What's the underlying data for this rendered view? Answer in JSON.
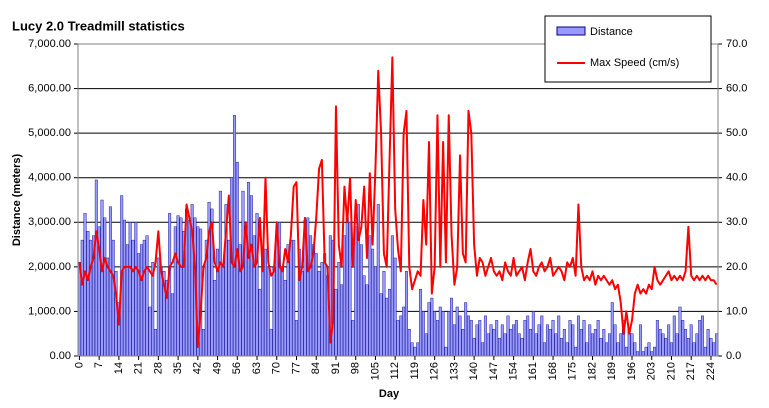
{
  "chart_data": {
    "type": "bar_line",
    "title": "Lucy 2.0 Treadmill statistics",
    "xlabel": "Day",
    "ylabel": "Distance (meters)",
    "categories": [
      0,
      null,
      null,
      null,
      null,
      null,
      null,
      7,
      null,
      null,
      null,
      null,
      null,
      null,
      14,
      null,
      null,
      null,
      null,
      null,
      null,
      21,
      null,
      null,
      null,
      null,
      null,
      null,
      28,
      null,
      null,
      null,
      null,
      null,
      null,
      35,
      null,
      null,
      null,
      null,
      null,
      null,
      42,
      null,
      null,
      null,
      null,
      null,
      null,
      49,
      null,
      null,
      null,
      null,
      null,
      null,
      56,
      null,
      null,
      null,
      null,
      null,
      null,
      63,
      null,
      null,
      null,
      null,
      null,
      null,
      70,
      null,
      null,
      null,
      null,
      null,
      null,
      77,
      null,
      null,
      null,
      null,
      null,
      null,
      84,
      null,
      null,
      null,
      null,
      null,
      null,
      91,
      null,
      null,
      null,
      null,
      null,
      null,
      98,
      null,
      null,
      null,
      null,
      null,
      null,
      105,
      null,
      null,
      null,
      null,
      null,
      null,
      112,
      null,
      null,
      null,
      null,
      null,
      null,
      119,
      null,
      null,
      null,
      null,
      null,
      null,
      126,
      null,
      null,
      null,
      null,
      null,
      null,
      133,
      null,
      null,
      null,
      null,
      null,
      null,
      140,
      null,
      null,
      null,
      null,
      null,
      null,
      147,
      null,
      null,
      null,
      null,
      null,
      null,
      154,
      null,
      null,
      null,
      null,
      null,
      null,
      161,
      null,
      null,
      null,
      null,
      null,
      null,
      168,
      null,
      null,
      null,
      null,
      null,
      null,
      175,
      null,
      null,
      null,
      null,
      null,
      null,
      182,
      null,
      null,
      null,
      null,
      null,
      null,
      189,
      null,
      null,
      null,
      null,
      null,
      null,
      196,
      null,
      null,
      null,
      null,
      null,
      null,
      203,
      null,
      null,
      null,
      null,
      null,
      null,
      210,
      null,
      null,
      null,
      null,
      null,
      null,
      217,
      null,
      null,
      null,
      null,
      null,
      null,
      224,
      null,
      null
    ],
    "series": [
      {
        "name": "Distance",
        "type": "bar",
        "color": "#9999ff",
        "edge": "#000080",
        "values": [
          2100,
          2600,
          3200,
          2800,
          2600,
          2700,
          3950,
          2900,
          3500,
          3100,
          2200,
          3350,
          2600,
          1900,
          1200,
          3600,
          3050,
          2500,
          3000,
          2600,
          3000,
          2300,
          2500,
          2600,
          2700,
          1100,
          2100,
          600,
          2200,
          2000,
          1900,
          1700,
          3200,
          1400,
          2900,
          3150,
          3100,
          2800,
          3300,
          3050,
          3400,
          3100,
          2900,
          2850,
          600,
          2600,
          3450,
          3300,
          1700,
          2400,
          3700,
          2000,
          3400,
          2600,
          4000,
          5400,
          4350,
          2500,
          3700,
          2900,
          3900,
          3600,
          2700,
          3200,
          1500,
          2200,
          2400,
          2000,
          600,
          2000,
          2600,
          3000,
          2000,
          1700,
          2500,
          2600,
          2600,
          800,
          2400,
          1900,
          3050,
          3100,
          2700,
          2500,
          2300,
          1900,
          2100,
          2300,
          1800,
          2700,
          2600,
          1500,
          2100,
          1600,
          2700,
          3100,
          3000,
          800,
          2900,
          3400,
          2500,
          1800,
          1600,
          2700,
          2400,
          2000,
          3400,
          1400,
          1900,
          1300,
          1500,
          2700,
          2200,
          800,
          900,
          1100,
          1900,
          600,
          300,
          200,
          300,
          1500,
          1000,
          500,
          1200,
          1300,
          1000,
          800,
          1100,
          1000,
          200,
          1000,
          1300,
          700,
          1100,
          900,
          600,
          1200,
          900,
          800,
          400,
          700,
          800,
          300,
          900,
          500,
          700,
          600,
          800,
          400,
          700,
          500,
          900,
          600,
          700,
          800,
          500,
          400,
          800,
          900,
          600,
          1000,
          500,
          700,
          900,
          300,
          700,
          600,
          800,
          500,
          900,
          400,
          600,
          300,
          800,
          700,
          200,
          900,
          600,
          800,
          300,
          700,
          500,
          600,
          800,
          400,
          600,
          300,
          500,
          1200,
          700,
          300,
          500,
          800,
          200,
          600,
          500,
          300,
          100,
          700,
          100,
          200,
          300,
          100,
          200,
          800,
          600,
          500,
          400,
          700,
          300,
          900,
          500,
          1100,
          800,
          600,
          400,
          700,
          300,
          500,
          800,
          900,
          200,
          600,
          400,
          300,
          500
        ]
      },
      {
        "name": "Max Speed (cm/s)",
        "type": "line",
        "axis": "y2",
        "color": "#ff0000",
        "values": [
          21,
          16,
          19,
          17,
          20,
          22,
          28,
          24,
          19,
          22,
          20,
          19,
          18,
          14,
          7,
          19,
          20,
          20,
          20,
          19,
          20,
          19,
          17,
          19,
          20,
          19,
          18,
          21,
          28,
          19,
          16,
          13,
          20,
          21,
          23,
          21,
          20,
          20,
          34,
          31,
          28,
          20,
          2,
          10,
          20,
          22,
          28,
          30,
          21,
          19,
          21,
          20,
          28,
          36,
          21,
          20,
          24,
          19,
          20,
          30,
          22,
          25,
          20,
          21,
          31,
          19,
          40,
          21,
          18,
          19,
          30,
          20,
          19,
          24,
          21,
          27,
          38,
          39,
          17,
          20,
          31,
          19,
          20,
          23,
          31,
          42,
          44,
          21,
          20,
          3,
          8,
          56,
          25,
          20,
          38,
          30,
          40,
          20,
          35,
          26,
          29,
          38,
          22,
          41,
          25,
          42,
          64,
          50,
          23,
          20,
          44,
          67,
          33,
          24,
          19,
          50,
          55,
          20,
          15,
          17,
          19,
          18,
          35,
          25,
          48,
          14,
          20,
          54,
          20,
          48,
          21,
          54,
          27,
          16,
          20,
          45,
          23,
          21,
          55,
          50,
          25,
          18,
          22,
          21,
          18,
          20,
          22,
          19,
          18,
          19,
          17,
          21,
          19,
          18,
          22,
          18,
          19,
          20,
          17,
          21,
          24,
          19,
          18,
          20,
          21,
          19,
          20,
          22,
          18,
          19,
          20,
          19,
          17,
          21,
          20,
          22,
          18,
          34,
          20,
          17,
          18,
          17,
          19,
          16,
          18,
          17,
          18,
          17,
          16,
          17,
          15,
          16,
          12,
          5,
          10,
          5,
          8,
          14,
          16,
          14,
          15,
          14,
          16,
          15,
          20,
          17,
          16,
          17,
          18,
          19,
          17,
          18,
          17,
          18,
          17,
          19,
          29,
          18,
          17,
          18,
          17,
          18,
          17,
          18,
          17,
          17,
          16
        ]
      }
    ],
    "ylim": [
      0,
      7000
    ],
    "yticks": [
      {
        "value": 0,
        "label": "0.00"
      },
      {
        "value": 1000,
        "label": "1,000.00"
      },
      {
        "value": 2000,
        "label": "2,000.00"
      },
      {
        "value": 3000,
        "label": "3,000.00"
      },
      {
        "value": 4000,
        "label": "4,000.00"
      },
      {
        "value": 5000,
        "label": "5,000.00"
      },
      {
        "value": 6000,
        "label": "6,000.00"
      },
      {
        "value": 7000,
        "label": "7,000.00"
      }
    ],
    "y2lim": [
      0,
      70
    ],
    "y2ticks": [
      {
        "value": 0,
        "label": "0.0"
      },
      {
        "value": 10,
        "label": "10.0"
      },
      {
        "value": 20,
        "label": "20.0"
      },
      {
        "value": 30,
        "label": "30.0"
      },
      {
        "value": 40,
        "label": "40.0"
      },
      {
        "value": 50,
        "label": "50.0"
      },
      {
        "value": 60,
        "label": "60.0"
      },
      {
        "value": 70,
        "label": "70.0"
      }
    ],
    "grid": true
  }
}
